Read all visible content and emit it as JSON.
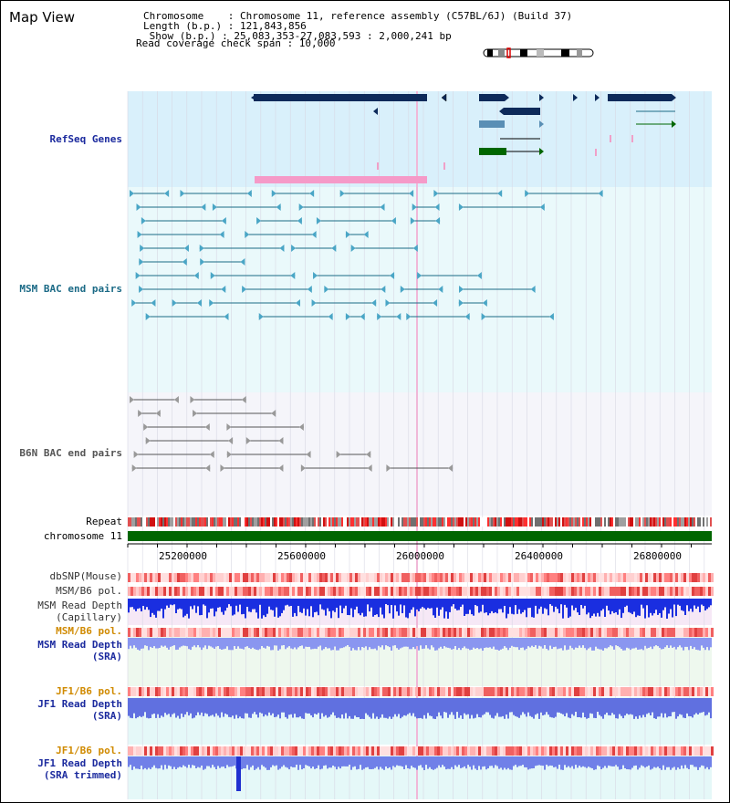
{
  "window": {
    "title": "Map View"
  },
  "header": {
    "chromosome_line": "Chromosome    : Chromosome 11, reference assembly (C57BL/6J) (Build 37)",
    "length_line": "Length (b.p.) : 121,843,856",
    "show_line": " Show (b.p.) : 25,083,353-27,083,593 : 2,000,241 bp",
    "coverage_line": "Read coverage check span : 10,000"
  },
  "tracks": {
    "refseq": "RefSeq Genes",
    "msm_bac": "MSM BAC end pairs",
    "b6n_bac": "B6N BAC end pairs",
    "repeat": "Repeat",
    "chromosome": "chromosome 11",
    "dbsnp": "dbSNP(Mouse)",
    "msm_b6_pol_1": "MSM/B6 pol.",
    "msm_depth_cap_1": "MSM Read Depth",
    "msm_depth_cap_2": "(Capillary)",
    "msm_b6_pol_2": "MSM/B6 pol.",
    "msm_depth_sra_1": "MSM Read Depth",
    "msm_depth_sra_2": "(SRA)",
    "jf1_pol_1": "JF1/B6 pol.",
    "jf1_depth_sra_1": "JF1 Read Depth",
    "jf1_depth_sra_2": "(SRA)",
    "jf1_pol_2": "JF1/B6 pol.",
    "jf1_depth_trim_1": "JF1 Read Depth",
    "jf1_depth_trim_2": "(SRA trimmed)"
  },
  "axis": {
    "ticks": [
      "25200000",
      "25600000",
      "26000000",
      "26400000",
      "26800000"
    ]
  },
  "colors": {
    "refseq_label": "#1b2a9e",
    "msm_label": "#1b6a86",
    "b6n_label": "#555555",
    "depth_label": "#1b2a9e",
    "pol_label": "#d08a00",
    "gene_navy": "#0d2a5a",
    "chromosome_green": "#006600"
  }
}
